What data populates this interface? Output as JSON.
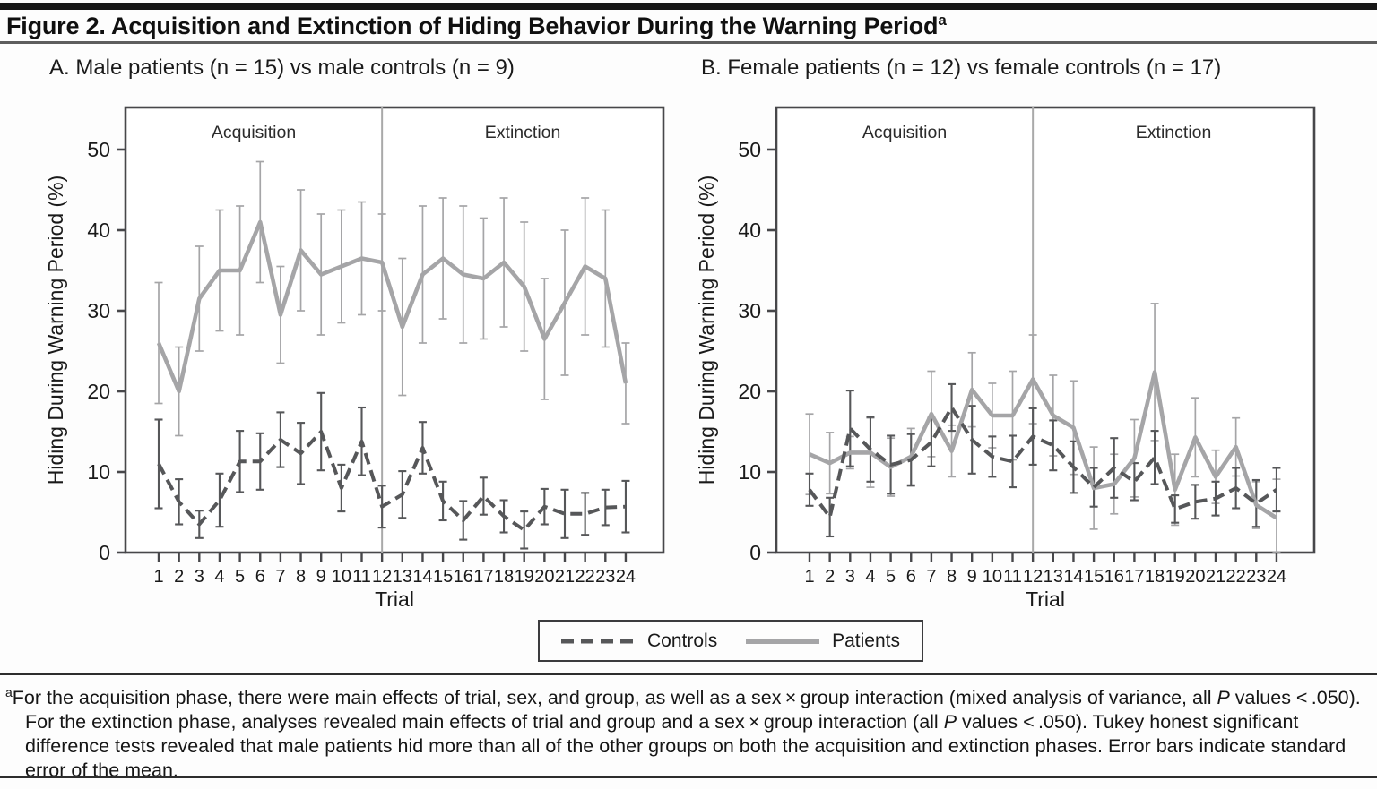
{
  "figure": {
    "title": "Figure 2. Acquisition and Extinction of Hiding Behavior During the Warning Period",
    "title_superscript": "a"
  },
  "colors": {
    "patients_line": "#a5a5a7",
    "controls_line": "#565759",
    "separator_line": "#a9a9a9",
    "axis_box": "#47474a",
    "text": "#1a1a1a"
  },
  "legend": {
    "items": [
      {
        "label": "Controls",
        "style": "dashed",
        "color": "#565759"
      },
      {
        "label": "Patients",
        "style": "solid",
        "color": "#a5a5a7"
      }
    ]
  },
  "chart_data": [
    {
      "type": "line",
      "panel_label": "A. Male patients (n = 15) vs male controls (n = 9)",
      "xlabel": "Trial",
      "ylabel": "Hiding During Warning Period (%)",
      "ylim": [
        0,
        55
      ],
      "yticks": [
        0,
        10,
        20,
        30,
        40,
        50
      ],
      "x": [
        1,
        2,
        3,
        4,
        5,
        6,
        7,
        8,
        9,
        10,
        11,
        12,
        13,
        14,
        15,
        16,
        17,
        18,
        19,
        20,
        21,
        22,
        23,
        24
      ],
      "phase_divider_x": 12,
      "phase_labels": [
        "Acquisition",
        "Extinction"
      ],
      "series": [
        {
          "name": "Patients",
          "style": "solid",
          "color": "#a5a5a7",
          "values": [
            26,
            20,
            31.5,
            35,
            35,
            41,
            29.5,
            37.5,
            34.5,
            35.5,
            36.5,
            36,
            28,
            34.5,
            36.5,
            34.5,
            34,
            36,
            33,
            26.5,
            31,
            35.5,
            34,
            21
          ],
          "stderr": [
            7.5,
            5.5,
            6.5,
            7.5,
            8,
            7.5,
            6,
            7.5,
            7.5,
            7,
            7,
            6,
            8.5,
            8.5,
            7.5,
            8.5,
            7.5,
            8,
            8,
            7.5,
            9,
            8.5,
            8.5,
            5
          ]
        },
        {
          "name": "Controls",
          "style": "dashed",
          "color": "#565759",
          "values": [
            11,
            6.3,
            3.5,
            6.5,
            11.3,
            11.3,
            14,
            12.3,
            15,
            8,
            13.8,
            5.7,
            7.2,
            13,
            6.4,
            4,
            7,
            4.5,
            2.8,
            5.7,
            4.8,
            4.8,
            5.6,
            5.7
          ],
          "stderr": [
            5.5,
            2.8,
            1.7,
            3.3,
            3.8,
            3.5,
            3.4,
            3.8,
            4.8,
            2.9,
            4.2,
            2.6,
            2.9,
            3.2,
            2.4,
            2.4,
            2.3,
            2,
            2.3,
            2.2,
            3,
            2.6,
            2.2,
            3.2
          ]
        }
      ]
    },
    {
      "type": "line",
      "panel_label": "B. Female patients (n = 12) vs female controls (n = 17)",
      "xlabel": "Trial",
      "ylabel": "Hiding During Warning Period (%)",
      "ylim": [
        0,
        55
      ],
      "yticks": [
        0,
        10,
        20,
        30,
        40,
        50
      ],
      "x": [
        1,
        2,
        3,
        4,
        5,
        6,
        7,
        8,
        9,
        10,
        11,
        12,
        13,
        14,
        15,
        16,
        17,
        18,
        19,
        20,
        21,
        22,
        23,
        24
      ],
      "phase_divider_x": 12,
      "phase_labels": [
        "Acquisition",
        "Extinction"
      ],
      "series": [
        {
          "name": "Patients",
          "style": "solid",
          "color": "#a5a5a7",
          "values": [
            12.2,
            11.1,
            12.4,
            12.4,
            10.6,
            11.9,
            17.2,
            12.6,
            20.2,
            17,
            17,
            21.5,
            17,
            15.5,
            8,
            8.5,
            11.7,
            22.4,
            7.8,
            14.3,
            9.4,
            13.1,
            5.9,
            4.3
          ],
          "stderr": [
            5,
            3.8,
            2,
            4.3,
            3.6,
            3.5,
            5.3,
            3.2,
            4.6,
            4,
            5.5,
            5.5,
            5,
            5.8,
            5.1,
            3.7,
            4.8,
            8.5,
            4.4,
            4.9,
            3.3,
            3.6,
            2.9,
            4.8
          ]
        },
        {
          "name": "Controls",
          "style": "dashed",
          "color": "#565759",
          "values": [
            7.8,
            4.4,
            15.4,
            12.8,
            10.9,
            11.5,
            13.7,
            18,
            14,
            11.9,
            11.3,
            14.4,
            13.3,
            10.6,
            8.1,
            10.5,
            8.8,
            11.8,
            5.4,
            6.3,
            6.7,
            8,
            6.1,
            7.8
          ],
          "stderr": [
            2,
            2.4,
            4.7,
            4,
            3.6,
            3.2,
            3,
            2.9,
            4.2,
            2.5,
            3.2,
            3.5,
            3.1,
            3.2,
            2.4,
            3.7,
            2.3,
            3.3,
            1.7,
            2.1,
            2.1,
            2.5,
            2.9,
            2.7
          ]
        }
      ]
    }
  ],
  "footnote": {
    "marker": "a",
    "segments": [
      {
        "text": "For the acquisition phase, there were main effects of trial, sex, and group, as well as a sex × group interaction (mixed analysis of variance, all ",
        "italic": false
      },
      {
        "text": "P",
        "italic": true
      },
      {
        "text": " values < .050). For the extinction phase, analyses revealed main effects of trial and group and a sex × group interaction (all ",
        "italic": false
      },
      {
        "text": "P",
        "italic": true
      },
      {
        "text": " values < .050). Tukey honest significant difference tests revealed that male patients hid more than all of the other groups on both the acquisition and extinction phases. Error bars indicate standard error of the mean.",
        "italic": false
      }
    ]
  }
}
